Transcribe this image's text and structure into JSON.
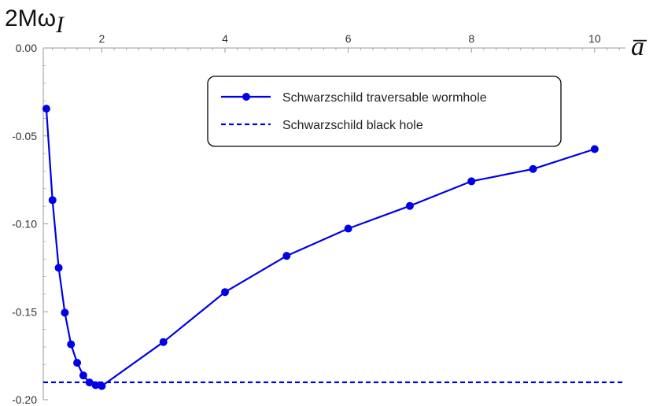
{
  "chart_data": {
    "type": "line",
    "ylabel": {
      "main": "2Mω",
      "sub": "I"
    },
    "xlabel": "a̅",
    "xlim": [
      1.05,
      10.5
    ],
    "ylim": [
      -0.2,
      0.0
    ],
    "x_ticks": [
      2,
      4,
      6,
      8,
      10
    ],
    "y_ticks": [
      0.0,
      -0.05,
      -0.1,
      -0.15,
      -0.2
    ],
    "y_tick_labels": [
      "0.00",
      "-0.05",
      "-0.10",
      "-0.15",
      "-0.20"
    ],
    "x_axis_position": "top",
    "legend_position": "top-right",
    "series": [
      {
        "name": "Schwarzschild traversable wormhole",
        "style": "solid-with-markers",
        "color": "#0000e6",
        "x": [
          1.1,
          1.2,
          1.3,
          1.4,
          1.5,
          1.6,
          1.7,
          1.8,
          1.9,
          2.0,
          3.0,
          4.0,
          5.0,
          6.0,
          7.0,
          8.0,
          9.0,
          10.0
        ],
        "y": [
          -0.0345,
          -0.0865,
          -0.125,
          -0.1505,
          -0.1685,
          -0.179,
          -0.1862,
          -0.1902,
          -0.1917,
          -0.1922,
          -0.1672,
          -0.1388,
          -0.1182,
          -0.1027,
          -0.0898,
          -0.0758,
          -0.0688,
          -0.0575
        ]
      },
      {
        "name": "Schwarzschild black hole",
        "style": "dashed",
        "color": "#0000e6",
        "y_constant": -0.1901
      }
    ]
  }
}
